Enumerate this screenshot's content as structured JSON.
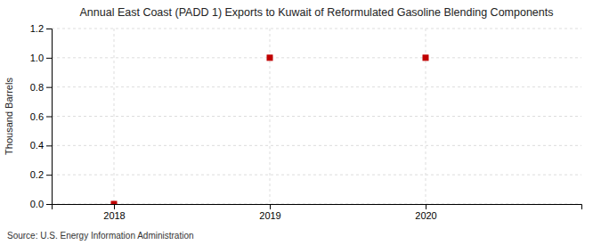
{
  "chart_data": {
    "type": "scatter",
    "title": "Annual East Coast (PADD 1) Exports to Kuwait of Reformulated Gasoline Blending Components",
    "y_label": "Thousand Barrels",
    "source": "Source: U.S. Energy Information Administration",
    "x": [
      2018,
      2019,
      2020
    ],
    "values": [
      0,
      1,
      1
    ],
    "color": "#c00000",
    "marker": "square",
    "xlim": [
      2017.6,
      2021.0
    ],
    "xticks": [
      2018,
      2019,
      2020
    ],
    "ylim": [
      0,
      1.2
    ],
    "yticks": [
      {
        "value": 0.0,
        "label": "0.0"
      },
      0.2,
      0.4,
      0.6,
      0.8,
      {
        "value": 1.0,
        "label": "1.0"
      },
      1.2
    ],
    "grid": true
  }
}
